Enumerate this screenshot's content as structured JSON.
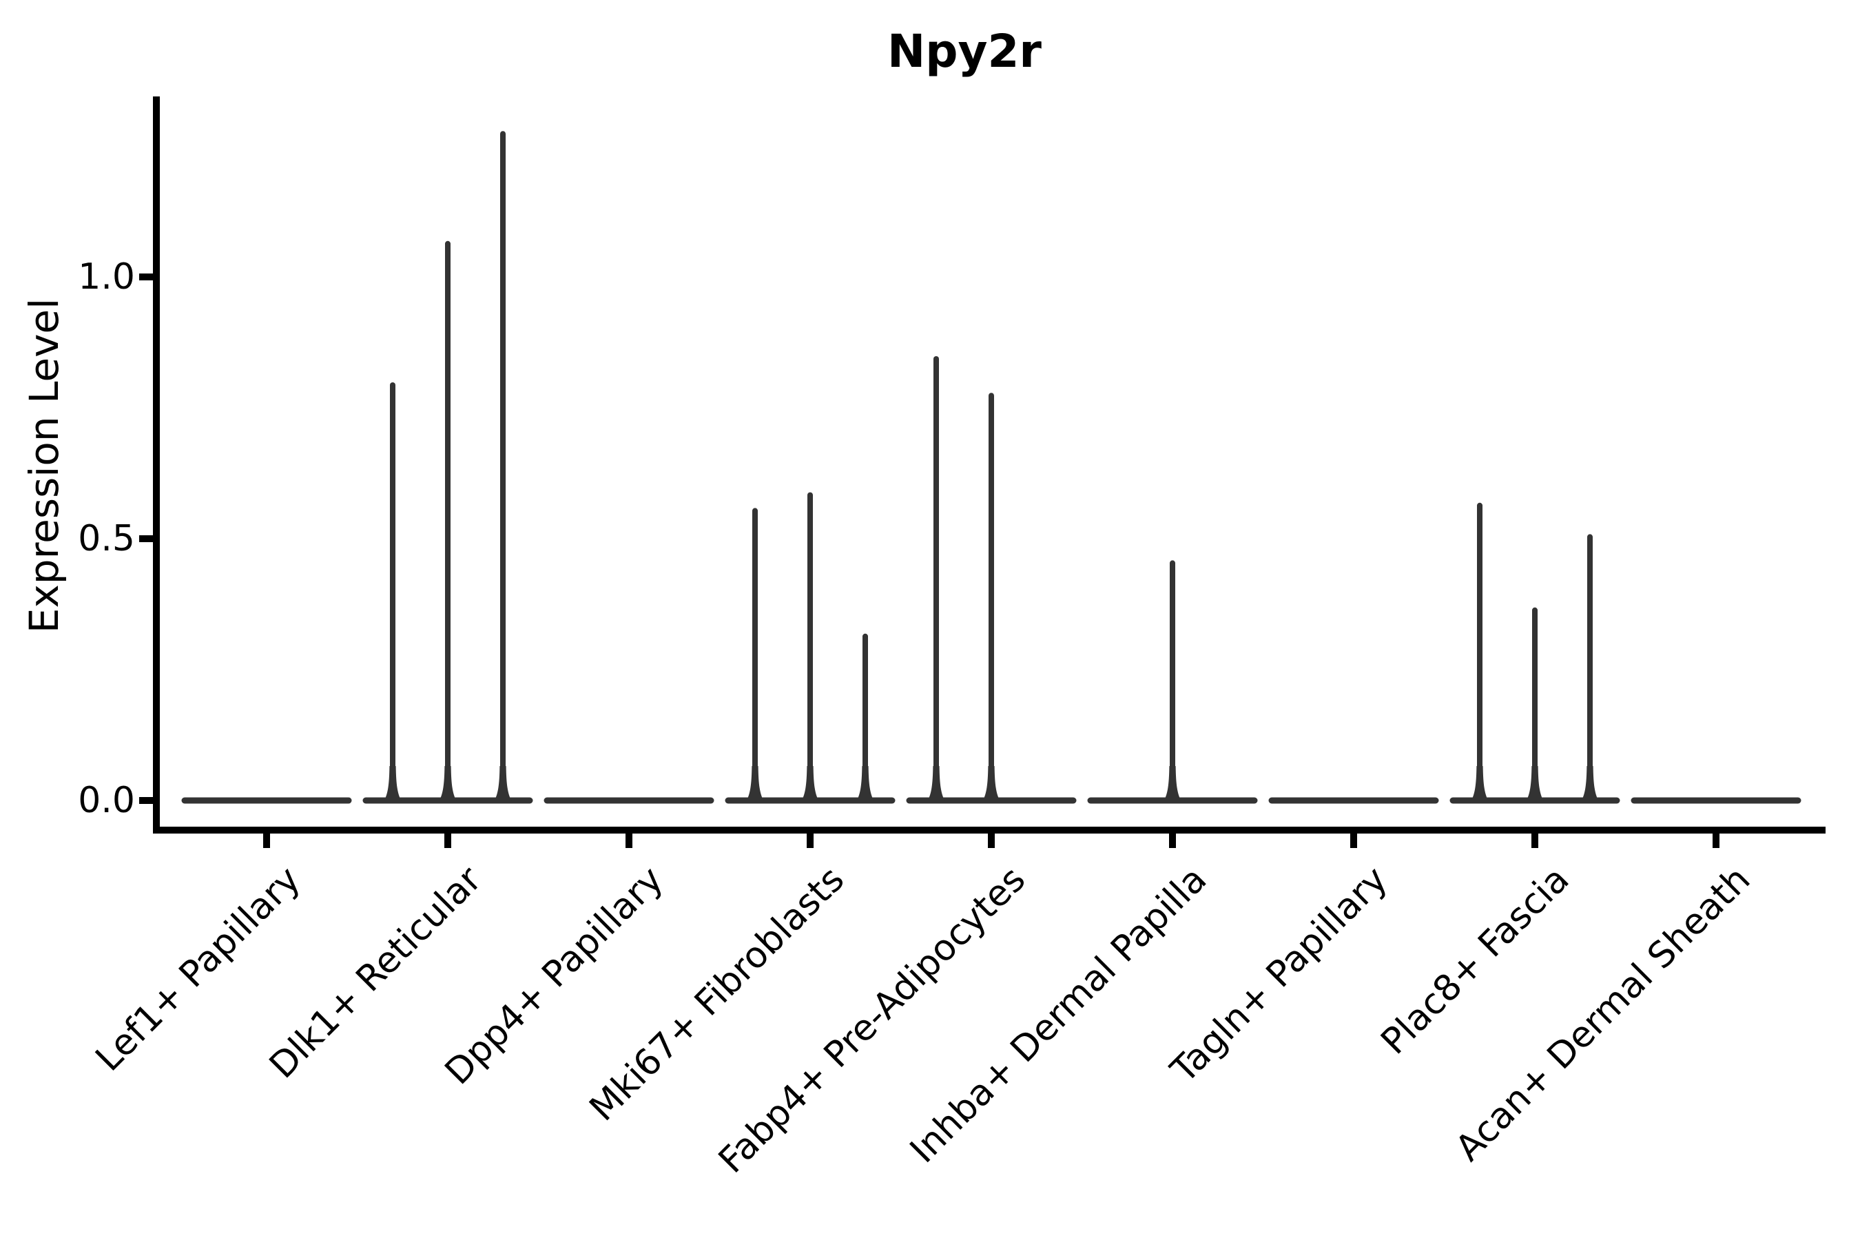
{
  "chart_data": {
    "type": "violin",
    "title": "Npy2r",
    "xlabel": "",
    "ylabel": "Expression Level",
    "ytick_labels": [
      "1.0",
      "0.5",
      "0.0"
    ],
    "ytick_values": [
      1.0,
      0.5,
      0.0
    ],
    "ylim": [
      -0.06,
      1.34
    ],
    "x_tick_rotation": 45,
    "grid": "off",
    "legend": "none",
    "violins_per_category": 3,
    "categories": [
      "Lef1+ Papillary",
      "Dlk1+ Reticular",
      "Dpp4+ Papillary",
      "Mki67+ Fibroblasts",
      "Fabp4+ Pre-Adipocytes",
      "Inhba+ Dermal Papilla",
      "Tagln+ Papillary",
      "Plac8+ Fascia",
      "Acan+ Dermal Sheath"
    ],
    "values": [
      [
        0,
        0,
        0
      ],
      [
        0.8,
        1.07,
        1.28
      ],
      [
        0,
        0,
        0
      ],
      [
        0.56,
        0.59,
        0.32
      ],
      [
        0.85,
        0.78,
        0
      ],
      [
        0,
        0.46,
        0
      ],
      [
        0,
        0,
        0
      ],
      [
        0.57,
        0.37,
        0.51
      ],
      [
        0,
        0,
        0
      ]
    ],
    "colors": {
      "violin": "#333333",
      "axis": "#000000",
      "text": "#000000",
      "background": "#ffffff"
    }
  }
}
